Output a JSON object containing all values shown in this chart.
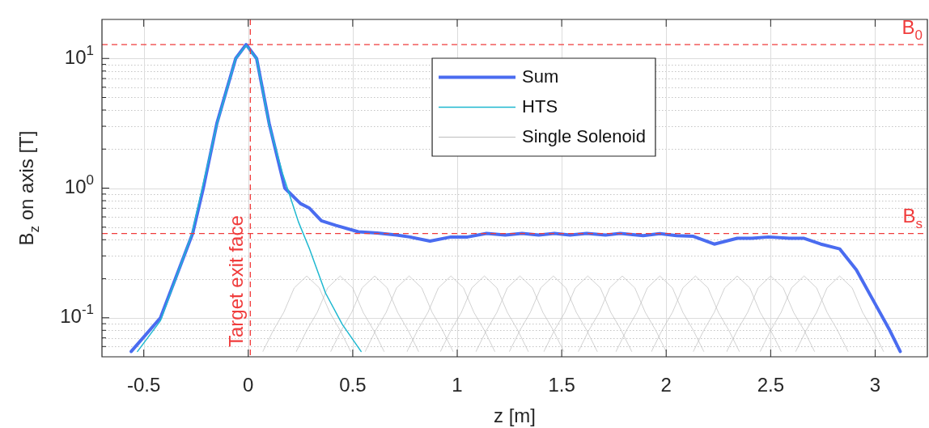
{
  "chart_data": {
    "type": "line",
    "xlabel": "z [m]",
    "ylabel": "B$_{z}$ on axis [T]",
    "log": true,
    "grid": true,
    "legend": "top",
    "xlim": [
      -0.7,
      3.25
    ],
    "xticks": [
      -0.5,
      0,
      0.5,
      1,
      1.5,
      2,
      2.5,
      3
    ],
    "ylim": [
      0.05,
      20
    ],
    "yticks": [
      {
        "value": 0.06,
        "label": null
      },
      {
        "value": 0.07,
        "label": null
      },
      {
        "value": 0.08,
        "label": null
      },
      {
        "value": 0.09,
        "label": null
      },
      {
        "value": 0.1,
        "label": "10$^{-1}$"
      },
      {
        "value": 0.2,
        "label": null
      },
      {
        "value": 0.3,
        "label": null
      },
      {
        "value": 0.4,
        "label": null
      },
      {
        "value": 0.5,
        "label": null
      },
      {
        "value": 0.6,
        "label": null
      },
      {
        "value": 0.7,
        "label": null
      },
      {
        "value": 0.8,
        "label": null
      },
      {
        "value": 0.9,
        "label": null
      },
      {
        "value": 1,
        "label": "10$^{0}$"
      },
      {
        "value": 2,
        "label": null
      },
      {
        "value": 3,
        "label": null
      },
      {
        "value": 4,
        "label": null
      },
      {
        "value": 5,
        "label": null
      },
      {
        "value": 6,
        "label": null
      },
      {
        "value": 7,
        "label": null
      },
      {
        "value": 8,
        "label": null
      },
      {
        "value": 9,
        "label": null
      },
      {
        "value": 10,
        "label": "10$^{1}$"
      }
    ],
    "ref_lines": [
      {
        "axis": "y",
        "value": 12.8,
        "label": "B$_{0}$",
        "color": "#f03c3c",
        "line_style": "dashed"
      },
      {
        "axis": "y",
        "value": 0.447,
        "label": "B$_{s}$",
        "color": "#f03c3c",
        "line_style": "dashed"
      },
      {
        "axis": "x",
        "value": 0.01,
        "label": "Target exit face",
        "color": "#f03c3c",
        "line_style": "dashed"
      }
    ],
    "series": [
      {
        "name": "Sum",
        "color": "#4a6cf0",
        "x": [
          -0.56,
          -0.42,
          -0.266,
          -0.215,
          -0.15,
          -0.06,
          -0.01,
          0.04,
          0.1,
          0.175,
          0.25,
          0.293,
          0.35,
          0.42,
          0.527,
          0.617,
          0.71,
          0.773,
          0.87,
          0.97,
          1.05,
          1.14,
          1.23,
          1.31,
          1.39,
          1.465,
          1.54,
          1.62,
          1.71,
          1.78,
          1.89,
          1.97,
          2.05,
          2.13,
          2.23,
          2.34,
          2.41,
          2.49,
          2.59,
          2.66,
          2.74,
          2.83,
          2.91,
          2.99,
          3.07,
          3.12
        ],
        "values": [
          0.055,
          0.1,
          0.447,
          1.0,
          3.16,
          10,
          12.8,
          10,
          3.16,
          1.0,
          0.76,
          0.7,
          0.56,
          0.516,
          0.46,
          0.45,
          0.435,
          0.42,
          0.39,
          0.42,
          0.42,
          0.447,
          0.435,
          0.447,
          0.435,
          0.447,
          0.435,
          0.447,
          0.435,
          0.447,
          0.43,
          0.445,
          0.43,
          0.425,
          0.37,
          0.41,
          0.41,
          0.42,
          0.41,
          0.41,
          0.37,
          0.34,
          0.234,
          0.137,
          0.08,
          0.055
        ]
      },
      {
        "name": "HTS",
        "color": "#1fb8d0",
        "x": [
          -0.53,
          -0.42,
          -0.27,
          -0.22,
          -0.15,
          -0.06,
          -0.01,
          0.04,
          0.1,
          0.164,
          0.24,
          0.293,
          0.37,
          0.45,
          0.54
        ],
        "values": [
          0.055,
          0.095,
          0.44,
          1.0,
          3.1,
          10,
          12.6,
          10,
          3.1,
          1.3,
          0.55,
          0.34,
          0.155,
          0.089,
          0.055
        ]
      },
      {
        "name": "Single Solenoid",
        "color": "#bdbdbd",
        "x": [
          0.07,
          0.12,
          0.17,
          0.22,
          0.28,
          0.34,
          0.39,
          0.44,
          0.49
        ],
        "values": [
          0.055,
          0.08,
          0.11,
          0.17,
          0.21,
          0.17,
          0.11,
          0.08,
          0.055
        ]
      },
      {
        "color": "#bdbdbd",
        "x": [
          0.23,
          0.28,
          0.33,
          0.38,
          0.44,
          0.5,
          0.55,
          0.6,
          0.65
        ],
        "values": [
          0.055,
          0.08,
          0.11,
          0.17,
          0.21,
          0.17,
          0.11,
          0.08,
          0.055
        ]
      },
      {
        "color": "#bdbdbd",
        "x": [
          0.395,
          0.445,
          0.495,
          0.545,
          0.605,
          0.665,
          0.715,
          0.765,
          0.815
        ],
        "values": [
          0.055,
          0.08,
          0.11,
          0.17,
          0.21,
          0.17,
          0.11,
          0.08,
          0.055
        ]
      },
      {
        "color": "#bdbdbd",
        "x": [
          0.56,
          0.61,
          0.66,
          0.71,
          0.77,
          0.83,
          0.88,
          0.93,
          0.98
        ],
        "values": [
          0.055,
          0.08,
          0.11,
          0.17,
          0.21,
          0.17,
          0.11,
          0.08,
          0.055
        ]
      },
      {
        "color": "#bdbdbd",
        "x": [
          0.76,
          0.81,
          0.86,
          0.91,
          0.97,
          1.03,
          1.08,
          1.13,
          1.18
        ],
        "values": [
          0.055,
          0.08,
          0.11,
          0.17,
          0.21,
          0.17,
          0.11,
          0.08,
          0.055
        ]
      },
      {
        "color": "#bdbdbd",
        "x": [
          0.92,
          0.97,
          1.02,
          1.07,
          1.13,
          1.19,
          1.24,
          1.29,
          1.34
        ],
        "values": [
          0.055,
          0.08,
          0.11,
          0.17,
          0.21,
          0.17,
          0.11,
          0.08,
          0.055
        ]
      },
      {
        "color": "#bdbdbd",
        "x": [
          1.09,
          1.14,
          1.19,
          1.24,
          1.3,
          1.36,
          1.41,
          1.46,
          1.51
        ],
        "values": [
          0.055,
          0.08,
          0.11,
          0.17,
          0.21,
          0.17,
          0.11,
          0.08,
          0.055
        ]
      },
      {
        "color": "#bdbdbd",
        "x": [
          1.25,
          1.3,
          1.35,
          1.4,
          1.46,
          1.52,
          1.57,
          1.62,
          1.67
        ],
        "values": [
          0.055,
          0.08,
          0.11,
          0.17,
          0.21,
          0.17,
          0.11,
          0.08,
          0.055
        ]
      },
      {
        "color": "#bdbdbd",
        "x": [
          1.415,
          1.465,
          1.515,
          1.565,
          1.625,
          1.685,
          1.735,
          1.785,
          1.835
        ],
        "values": [
          0.055,
          0.08,
          0.11,
          0.17,
          0.21,
          0.17,
          0.11,
          0.08,
          0.055
        ]
      },
      {
        "color": "#bdbdbd",
        "x": [
          1.58,
          1.63,
          1.68,
          1.73,
          1.79,
          1.85,
          1.9,
          1.95,
          2.0
        ],
        "values": [
          0.055,
          0.08,
          0.11,
          0.17,
          0.21,
          0.17,
          0.11,
          0.08,
          0.055
        ]
      },
      {
        "color": "#bdbdbd",
        "x": [
          1.76,
          1.81,
          1.86,
          1.91,
          1.97,
          2.03,
          2.08,
          2.13,
          2.18
        ],
        "values": [
          0.055,
          0.08,
          0.11,
          0.17,
          0.21,
          0.17,
          0.11,
          0.08,
          0.055
        ]
      },
      {
        "color": "#bdbdbd",
        "x": [
          1.93,
          1.98,
          2.03,
          2.08,
          2.14,
          2.2,
          2.25,
          2.3,
          2.35
        ],
        "values": [
          0.055,
          0.08,
          0.11,
          0.17,
          0.21,
          0.17,
          0.11,
          0.08,
          0.055
        ]
      },
      {
        "color": "#bdbdbd",
        "x": [
          2.13,
          2.18,
          2.23,
          2.28,
          2.34,
          2.4,
          2.45,
          2.5,
          2.55
        ],
        "values": [
          0.055,
          0.08,
          0.11,
          0.17,
          0.21,
          0.17,
          0.11,
          0.08,
          0.055
        ]
      },
      {
        "color": "#bdbdbd",
        "x": [
          2.29,
          2.34,
          2.39,
          2.44,
          2.5,
          2.56,
          2.61,
          2.66,
          2.71
        ],
        "values": [
          0.055,
          0.08,
          0.11,
          0.17,
          0.21,
          0.17,
          0.11,
          0.08,
          0.055
        ]
      },
      {
        "color": "#bdbdbd",
        "x": [
          2.45,
          2.5,
          2.55,
          2.6,
          2.66,
          2.72,
          2.77,
          2.82,
          2.87
        ],
        "values": [
          0.055,
          0.08,
          0.11,
          0.17,
          0.21,
          0.17,
          0.11,
          0.08,
          0.055
        ]
      },
      {
        "color": "#bdbdbd",
        "x": [
          2.62,
          2.67,
          2.72,
          2.77,
          2.83,
          2.89,
          2.94,
          2.99,
          3.04
        ],
        "values": [
          0.055,
          0.08,
          0.11,
          0.17,
          0.21,
          0.17,
          0.11,
          0.08,
          0.055
        ]
      }
    ]
  }
}
